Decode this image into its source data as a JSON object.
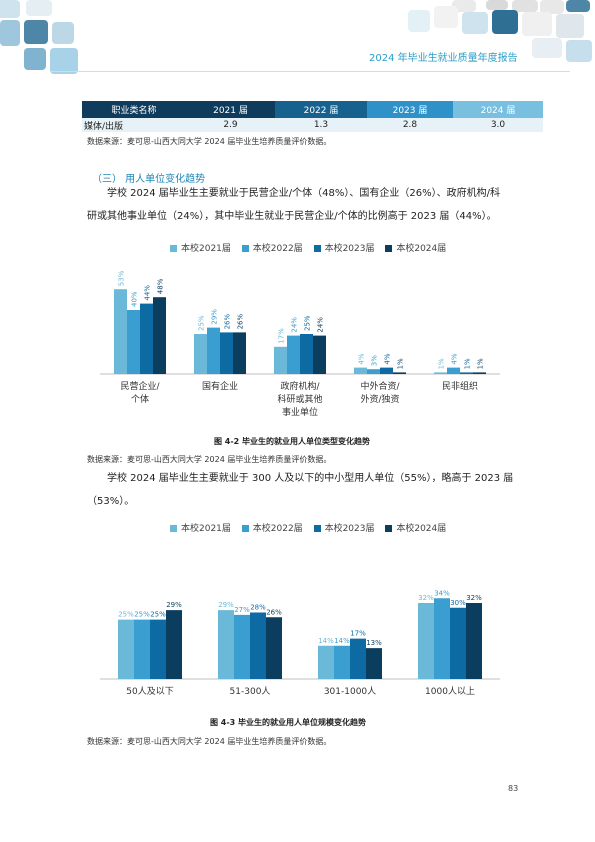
{
  "header": {
    "title": "2024 年毕业生就业质量年度报告"
  },
  "table": {
    "headers": [
      "职业类名称",
      "2021 届",
      "2022 届",
      "2023 届",
      "2024 届"
    ],
    "rows": [
      [
        "媒体/出版",
        "2.9",
        "1.3",
        "2.8",
        "3.0"
      ]
    ],
    "source": "数据来源：麦可思-山西大同大学 2024 届毕业生培养质量评价数据。"
  },
  "section": {
    "title": "（三）   用人单位变化趋势"
  },
  "paragraph1": {
    "line1": "学校 2024 届毕业生主要就业于民营企业/个体（48%）、国有企业（26%）、政府机构/科",
    "line2": "研或其他事业单位（24%），其中毕业生就业于民营企业/个体的比例高于 2023 届（44%）。"
  },
  "paragraph2": {
    "line1": "学校 2024 届毕业生主要就业于 300 人及以下的中小型用人单位（55%），略高于 2023 届",
    "line2": "（53%）。"
  },
  "colors": [
    "#6bb9d8",
    "#3a9fd0",
    "#0e6aa3",
    "#0b3d5f"
  ],
  "legend": [
    "本校2021届",
    "本校2022届",
    "本校2023届",
    "本校2024届"
  ],
  "chart_data": [
    {
      "type": "bar",
      "categories": [
        "民营企业/个体",
        "国有企业",
        "政府机构/科研或其他事业单位",
        "中外合资/外资/独资",
        "民非组织"
      ],
      "series": [
        {
          "name": "本校2021届",
          "values": [
            53,
            25,
            17,
            4,
            1
          ]
        },
        {
          "name": "本校2022届",
          "values": [
            40,
            29,
            24,
            3,
            4
          ]
        },
        {
          "name": "本校2023届",
          "values": [
            44,
            26,
            25,
            4,
            1
          ]
        },
        {
          "name": "本校2024届",
          "values": [
            48,
            26,
            24,
            1,
            1
          ]
        }
      ],
      "value_labels": [
        [
          "53%",
          "25%",
          "17%",
          "4%",
          "1%"
        ],
        [
          "40%",
          "29%",
          "24%",
          "3%",
          "4%"
        ],
        [
          "44%",
          "26%",
          "25%",
          "4%",
          "1%"
        ],
        [
          "48%",
          "26%",
          "24%",
          "1%",
          "1%"
        ]
      ],
      "category_labels": [
        [
          "民营企业/",
          "个体"
        ],
        [
          "国有企业"
        ],
        [
          "政府机构/",
          "科研或其他",
          "事业单位"
        ],
        [
          "中外合资/",
          "外资/独资"
        ],
        [
          "民非组织"
        ]
      ],
      "ylim": [
        0,
        60
      ],
      "title": "图 4-2      毕业生的就业用人单位类型变化趋势",
      "source": "数据来源：麦可思-山西大同大学 2024 届毕业生培养质量评价数据。"
    },
    {
      "type": "bar",
      "categories": [
        "50人及以下",
        "51-300人",
        "301-1000人",
        "1000人以上"
      ],
      "series": [
        {
          "name": "本校2021届",
          "values": [
            25,
            29,
            14,
            32
          ]
        },
        {
          "name": "本校2022届",
          "values": [
            25,
            27,
            14,
            34
          ]
        },
        {
          "name": "本校2023届",
          "values": [
            25,
            28,
            17,
            30
          ]
        },
        {
          "name": "本校2024届",
          "values": [
            29,
            26,
            13,
            32
          ]
        }
      ],
      "value_labels": [
        [
          "25%",
          "29%",
          "14%",
          "32%"
        ],
        [
          "25%",
          "27%",
          "14%",
          "34%"
        ],
        [
          "25%",
          "28%",
          "17%",
          "30%"
        ],
        [
          "29%",
          "26%",
          "13%",
          "32%"
        ]
      ],
      "category_labels": [
        [
          "50人及以下"
        ],
        [
          "51-300人"
        ],
        [
          "301-1000人"
        ],
        [
          "1000人以上"
        ]
      ],
      "ylim": [
        0,
        40
      ],
      "title": "图 4-3      毕业生的就业用人单位规模变化趋势",
      "source": "数据来源：麦可思-山西大同大学 2024 届毕业生培养质量评价数据。"
    }
  ],
  "page_number": "83"
}
